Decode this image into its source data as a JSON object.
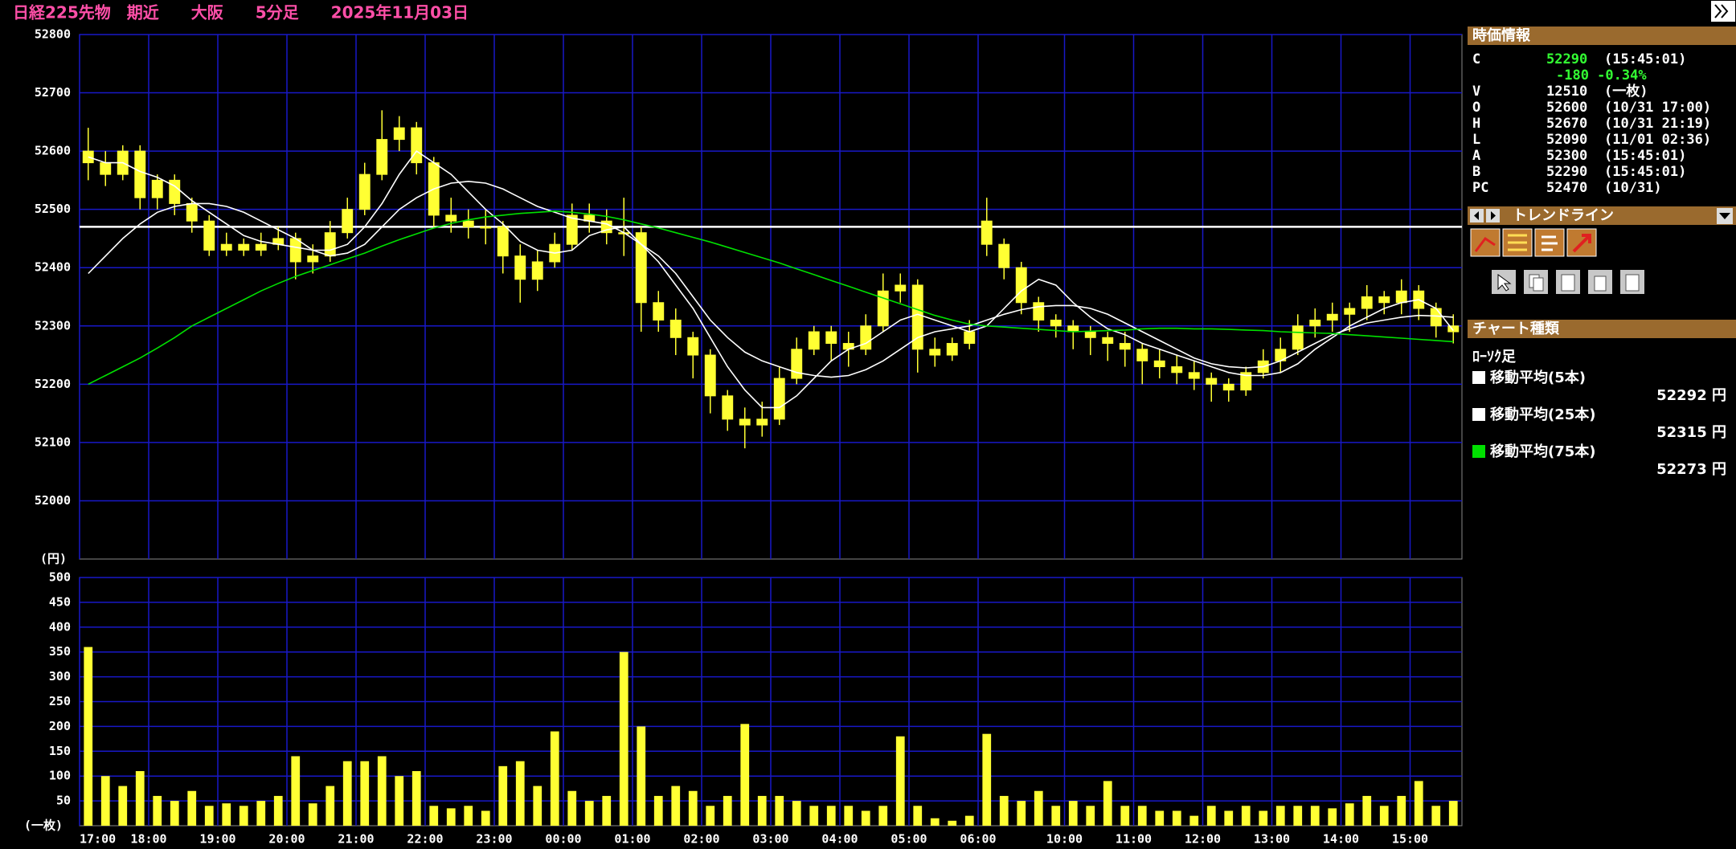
{
  "chart_data": [
    {
      "type": "candlestick",
      "title": "日経225先物　期近　　大阪　　5分足　　2025年11月03日",
      "y_unit": "(円)",
      "candle_color": "#ffff33",
      "grid": true,
      "grid_color": "#1818c8",
      "xlim": [
        0,
        80
      ],
      "xticks": [
        {
          "value": 0,
          "label": "17:00"
        },
        {
          "value": 4,
          "label": "18:00"
        },
        {
          "value": 8,
          "label": "19:00"
        },
        {
          "value": 12,
          "label": "20:00"
        },
        {
          "value": 16,
          "label": "21:00"
        },
        {
          "value": 20,
          "label": "22:00"
        },
        {
          "value": 24,
          "label": "23:00"
        },
        {
          "value": 28,
          "label": "00:00"
        },
        {
          "value": 32,
          "label": "01:00"
        },
        {
          "value": 36,
          "label": "02:00"
        },
        {
          "value": 40,
          "label": "03:00"
        },
        {
          "value": 44,
          "label": "04:00"
        },
        {
          "value": 48,
          "label": "05:00"
        },
        {
          "value": 52,
          "label": "06:00"
        },
        {
          "value": 57,
          "label": "10:00"
        },
        {
          "value": 61,
          "label": "11:00"
        },
        {
          "value": 65,
          "label": "12:00"
        },
        {
          "value": 69,
          "label": "13:00"
        },
        {
          "value": 73,
          "label": "14:00"
        },
        {
          "value": 77,
          "label": "15:00"
        }
      ],
      "ylim": [
        51900,
        52800
      ],
      "yticks": [
        52000,
        52100,
        52200,
        52300,
        52400,
        52500,
        52600,
        52700,
        52800
      ],
      "reference_line": 52470,
      "open": [
        52600,
        52580,
        52560,
        52600,
        52520,
        52550,
        52510,
        52480,
        52430,
        52440,
        52430,
        52440,
        52450,
        52410,
        52420,
        52460,
        52500,
        52560,
        52620,
        52640,
        52580,
        52490,
        52480,
        52470,
        52470,
        52420,
        52380,
        52410,
        52440,
        52490,
        52480,
        52460,
        52460,
        52340,
        52310,
        52280,
        52250,
        52180,
        52140,
        52130,
        52140,
        52210,
        52260,
        52290,
        52270,
        52260,
        52300,
        52360,
        52370,
        52260,
        52250,
        52270,
        52480,
        52440,
        52400,
        52340,
        52310,
        52300,
        52290,
        52280,
        52270,
        52260,
        52240,
        52230,
        52220,
        52210,
        52200,
        52190,
        52220,
        52240,
        52260,
        52300,
        52310,
        52320,
        52330,
        52350,
        52340,
        52360,
        52330,
        52300
      ],
      "high": [
        52640,
        52600,
        52610,
        52610,
        52560,
        52560,
        52520,
        52490,
        52460,
        52450,
        52460,
        52470,
        52460,
        52440,
        52480,
        52520,
        52580,
        52670,
        52660,
        52650,
        52590,
        52520,
        52500,
        52500,
        52480,
        52440,
        52430,
        52460,
        52510,
        52510,
        52500,
        52520,
        52470,
        52360,
        52330,
        52290,
        52260,
        52190,
        52160,
        52170,
        52230,
        52280,
        52300,
        52300,
        52290,
        52320,
        52390,
        52390,
        52380,
        52280,
        52280,
        52310,
        52520,
        52450,
        52410,
        52350,
        52320,
        52310,
        52300,
        52290,
        52290,
        52270,
        52260,
        52250,
        52240,
        52220,
        52210,
        52230,
        52260,
        52280,
        52320,
        52330,
        52340,
        52340,
        52370,
        52360,
        52380,
        52370,
        52340,
        52320
      ],
      "low": [
        52550,
        52540,
        52550,
        52500,
        52500,
        52490,
        52460,
        52420,
        52420,
        52420,
        52420,
        52430,
        52380,
        52390,
        52410,
        52450,
        52490,
        52550,
        52600,
        52560,
        52470,
        52460,
        52450,
        52440,
        52390,
        52340,
        52360,
        52400,
        52430,
        52460,
        52440,
        52420,
        52290,
        52290,
        52250,
        52210,
        52150,
        52120,
        52090,
        52110,
        52130,
        52200,
        52250,
        52240,
        52230,
        52250,
        52290,
        52340,
        52220,
        52230,
        52240,
        52260,
        52420,
        52380,
        52320,
        52290,
        52280,
        52260,
        52250,
        52240,
        52230,
        52200,
        52210,
        52200,
        52190,
        52170,
        52170,
        52180,
        52210,
        52220,
        52250,
        52280,
        52290,
        52290,
        52310,
        52320,
        52320,
        52310,
        52280,
        52270
      ],
      "close": [
        52580,
        52560,
        52600,
        52520,
        52550,
        52510,
        52480,
        52430,
        52440,
        52430,
        52440,
        52450,
        52410,
        52420,
        52460,
        52500,
        52560,
        52620,
        52640,
        52580,
        52490,
        52480,
        52470,
        52470,
        52420,
        52380,
        52410,
        52440,
        52490,
        52480,
        52460,
        52460,
        52340,
        52310,
        52280,
        52250,
        52180,
        52140,
        52130,
        52140,
        52210,
        52260,
        52290,
        52270,
        52260,
        52300,
        52360,
        52370,
        52260,
        52250,
        52270,
        52290,
        52440,
        52400,
        52340,
        52310,
        52300,
        52290,
        52280,
        52270,
        52260,
        52240,
        52230,
        52220,
        52210,
        52200,
        52190,
        52220,
        52240,
        52260,
        52300,
        52310,
        52320,
        52330,
        52350,
        52340,
        52360,
        52330,
        52300,
        52290
      ],
      "series": [
        {
          "name": "移動平均(5本)",
          "color": "#ffffff",
          "value_label": "52292 円",
          "values": [
            52590,
            52580,
            52580,
            52565,
            52555,
            52540,
            52515,
            52495,
            52475,
            52455,
            52445,
            52440,
            52435,
            52430,
            52430,
            52440,
            52470,
            52510,
            52560,
            52600,
            52580,
            52560,
            52530,
            52500,
            52475,
            52445,
            52430,
            52425,
            52430,
            52455,
            52465,
            52470,
            52440,
            52410,
            52370,
            52330,
            52280,
            52230,
            52190,
            52160,
            52160,
            52180,
            52210,
            52240,
            52260,
            52270,
            52290,
            52310,
            52320,
            52310,
            52300,
            52290,
            52300,
            52330,
            52360,
            52380,
            52370,
            52340,
            52315,
            52295,
            52285,
            52270,
            52260,
            52250,
            52240,
            52230,
            52220,
            52215,
            52215,
            52220,
            52235,
            52260,
            52280,
            52300,
            52315,
            52330,
            52340,
            52345,
            52330,
            52292
          ]
        },
        {
          "name": "移動平均(25本)",
          "color": "#ffffff",
          "value_label": "52315 円",
          "values": [
            52390,
            52420,
            52450,
            52475,
            52495,
            52505,
            52510,
            52510,
            52505,
            52495,
            52480,
            52465,
            52450,
            52430,
            52420,
            52425,
            52440,
            52470,
            52500,
            52520,
            52535,
            52545,
            52548,
            52545,
            52535,
            52520,
            52505,
            52495,
            52485,
            52480,
            52475,
            52460,
            52440,
            52420,
            52390,
            52350,
            52310,
            52280,
            52255,
            52240,
            52230,
            52220,
            52215,
            52212,
            52215,
            52225,
            52240,
            52260,
            52280,
            52290,
            52295,
            52300,
            52310,
            52320,
            52328,
            52333,
            52335,
            52335,
            52330,
            52320,
            52305,
            52290,
            52275,
            52260,
            52245,
            52235,
            52230,
            52228,
            52230,
            52240,
            52255,
            52270,
            52285,
            52295,
            52305,
            52310,
            52315,
            52318,
            52317,
            52315
          ]
        },
        {
          "name": "移動平均(75本)",
          "color": "#00e000",
          "value_label": "52273 円",
          "values": [
            52200,
            52215,
            52230,
            52245,
            52262,
            52280,
            52300,
            52315,
            52330,
            52345,
            52360,
            52373,
            52385,
            52395,
            52405,
            52415,
            52425,
            52437,
            52448,
            52458,
            52468,
            52476,
            52482,
            52487,
            52490,
            52493,
            52495,
            52497,
            52495,
            52492,
            52488,
            52482,
            52475,
            52468,
            52460,
            52452,
            52444,
            52435,
            52426,
            52417,
            52408,
            52398,
            52388,
            52378,
            52368,
            52358,
            52348,
            52338,
            52328,
            52318,
            52310,
            52303,
            52300,
            52298,
            52296,
            52294,
            52292,
            52290,
            52291,
            52292,
            52293,
            52295,
            52296,
            52296,
            52295,
            52295,
            52294,
            52293,
            52292,
            52290,
            52289,
            52288,
            52287,
            52285,
            52283,
            52281,
            52279,
            52277,
            52275,
            52273
          ]
        }
      ]
    },
    {
      "type": "bar",
      "y_unit": "(一枚)",
      "color": "#ffff33",
      "xlim": [
        0,
        80
      ],
      "ylim": [
        0,
        500
      ],
      "yticks": [
        50,
        100,
        150,
        200,
        250,
        300,
        350,
        400,
        450,
        500
      ],
      "values": [
        360,
        100,
        80,
        110,
        60,
        50,
        70,
        40,
        45,
        40,
        50,
        60,
        140,
        45,
        80,
        130,
        130,
        140,
        100,
        110,
        40,
        35,
        40,
        30,
        120,
        130,
        80,
        190,
        70,
        50,
        60,
        350,
        200,
        60,
        80,
        70,
        40,
        60,
        205,
        60,
        60,
        50,
        40,
        40,
        40,
        30,
        40,
        180,
        40,
        15,
        10,
        20,
        185,
        60,
        50,
        70,
        40,
        50,
        40,
        90,
        40,
        40,
        30,
        30,
        20,
        40,
        30,
        40,
        30,
        40,
        40,
        40,
        35,
        45,
        60,
        40,
        60,
        90,
        40,
        50
      ]
    }
  ],
  "quote_panel": {
    "title": "時価情報",
    "change": "-180 -0.34%",
    "rows": [
      {
        "label": "C",
        "value": "52290",
        "note": "(15:45:01)"
      },
      {
        "label": "V",
        "value": "12510",
        "note": "(一枚)"
      },
      {
        "label": "O",
        "value": "52600",
        "note": "(10/31 17:00)"
      },
      {
        "label": "H",
        "value": "52670",
        "note": "(10/31 21:19)"
      },
      {
        "label": "L",
        "value": "52090",
        "note": "(11/01 02:36)"
      },
      {
        "label": "A",
        "value": "52300",
        "note": "(15:45:01)"
      },
      {
        "label": "B",
        "value": "52290",
        "note": "(15:45:01)"
      },
      {
        "label": "PC",
        "value": "52470",
        "note": "(10/31)"
      }
    ]
  },
  "trendline_panel": {
    "title": "トレンドライン"
  },
  "chart_type_panel": {
    "title": "チャート種類",
    "style": "ﾛｰｿｸ足"
  }
}
